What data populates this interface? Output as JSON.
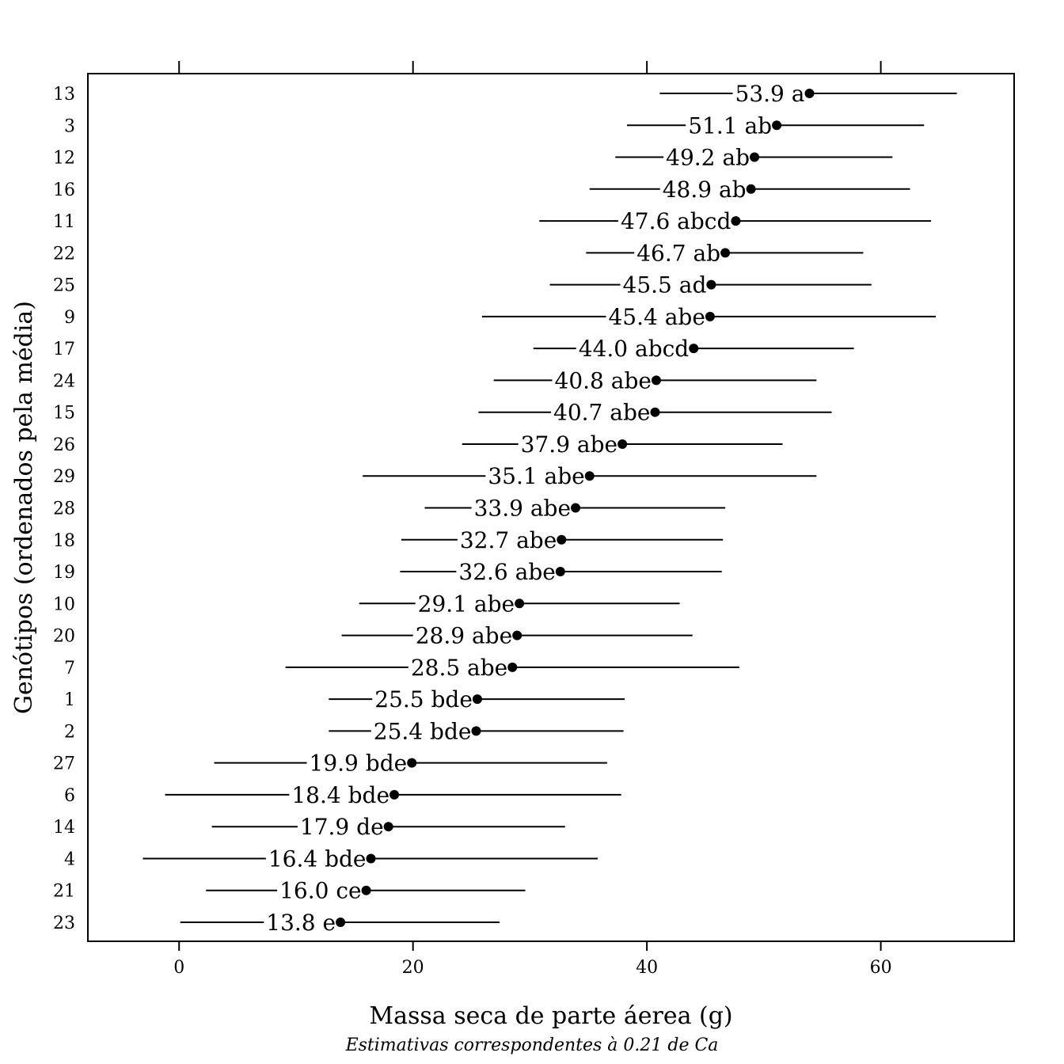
{
  "chart_data": {
    "type": "dotplot-ci",
    "xlabel": "Massa seca de parte áerea (g)",
    "subtitle": "Estimativas correspondentes à 0.21 de Ca",
    "ylabel": "Genótipos (ordenados pela média)",
    "xlim": [
      -7.8,
      71.4
    ],
    "xticks": [
      0,
      20,
      40,
      60
    ],
    "xtick_labels": [
      "0",
      "20",
      "40",
      "60"
    ],
    "grid": false,
    "points": [
      {
        "genotype": "13",
        "mean": 53.9,
        "lower": 41.1,
        "upper": 66.5,
        "label": "53.9 a"
      },
      {
        "genotype": "3",
        "mean": 51.1,
        "lower": 38.3,
        "upper": 63.7,
        "label": "51.1 ab"
      },
      {
        "genotype": "12",
        "mean": 49.2,
        "lower": 37.3,
        "upper": 61.0,
        "label": "49.2 ab"
      },
      {
        "genotype": "16",
        "mean": 48.9,
        "lower": 35.1,
        "upper": 62.5,
        "label": "48.9 ab"
      },
      {
        "genotype": "11",
        "mean": 47.6,
        "lower": 30.8,
        "upper": 64.3,
        "label": "47.6 abcd"
      },
      {
        "genotype": "22",
        "mean": 46.7,
        "lower": 34.8,
        "upper": 58.5,
        "label": "46.7 ab"
      },
      {
        "genotype": "25",
        "mean": 45.5,
        "lower": 31.7,
        "upper": 59.2,
        "label": "45.5 ad"
      },
      {
        "genotype": "9",
        "mean": 45.4,
        "lower": 25.9,
        "upper": 64.7,
        "label": "45.4 abe"
      },
      {
        "genotype": "17",
        "mean": 44.0,
        "lower": 30.3,
        "upper": 57.7,
        "label": "44.0 abcd"
      },
      {
        "genotype": "24",
        "mean": 40.8,
        "lower": 26.9,
        "upper": 54.5,
        "label": "40.8 abe"
      },
      {
        "genotype": "15",
        "mean": 40.7,
        "lower": 25.6,
        "upper": 55.8,
        "label": "40.7 abe"
      },
      {
        "genotype": "26",
        "mean": 37.9,
        "lower": 24.2,
        "upper": 51.6,
        "label": "37.9 abe"
      },
      {
        "genotype": "29",
        "mean": 35.1,
        "lower": 15.7,
        "upper": 54.5,
        "label": "35.1 abe"
      },
      {
        "genotype": "28",
        "mean": 33.9,
        "lower": 21.0,
        "upper": 46.7,
        "label": "33.9 abe"
      },
      {
        "genotype": "18",
        "mean": 32.7,
        "lower": 19.0,
        "upper": 46.5,
        "label": "32.7 abe"
      },
      {
        "genotype": "19",
        "mean": 32.6,
        "lower": 18.9,
        "upper": 46.4,
        "label": "32.6 abe"
      },
      {
        "genotype": "10",
        "mean": 29.1,
        "lower": 15.4,
        "upper": 42.8,
        "label": "29.1 abe"
      },
      {
        "genotype": "20",
        "mean": 28.9,
        "lower": 13.9,
        "upper": 43.9,
        "label": "28.9 abe"
      },
      {
        "genotype": "7",
        "mean": 28.5,
        "lower": 9.1,
        "upper": 47.9,
        "label": "28.5 abe"
      },
      {
        "genotype": "1",
        "mean": 25.5,
        "lower": 12.8,
        "upper": 38.1,
        "label": "25.5 bde"
      },
      {
        "genotype": "2",
        "mean": 25.4,
        "lower": 12.8,
        "upper": 38.0,
        "label": "25.4 bde"
      },
      {
        "genotype": "27",
        "mean": 19.9,
        "lower": 3.0,
        "upper": 36.6,
        "label": "19.9 bde"
      },
      {
        "genotype": "6",
        "mean": 18.4,
        "lower": -1.2,
        "upper": 37.8,
        "label": "18.4 bde"
      },
      {
        "genotype": "14",
        "mean": 17.9,
        "lower": 2.8,
        "upper": 33.0,
        "label": "17.9 de"
      },
      {
        "genotype": "4",
        "mean": 16.4,
        "lower": -3.1,
        "upper": 35.8,
        "label": "16.4 bde"
      },
      {
        "genotype": "21",
        "mean": 16.0,
        "lower": 2.3,
        "upper": 29.6,
        "label": "16.0 ce"
      },
      {
        "genotype": "23",
        "mean": 13.8,
        "lower": 0.1,
        "upper": 27.4,
        "label": "13.8 e"
      }
    ]
  }
}
